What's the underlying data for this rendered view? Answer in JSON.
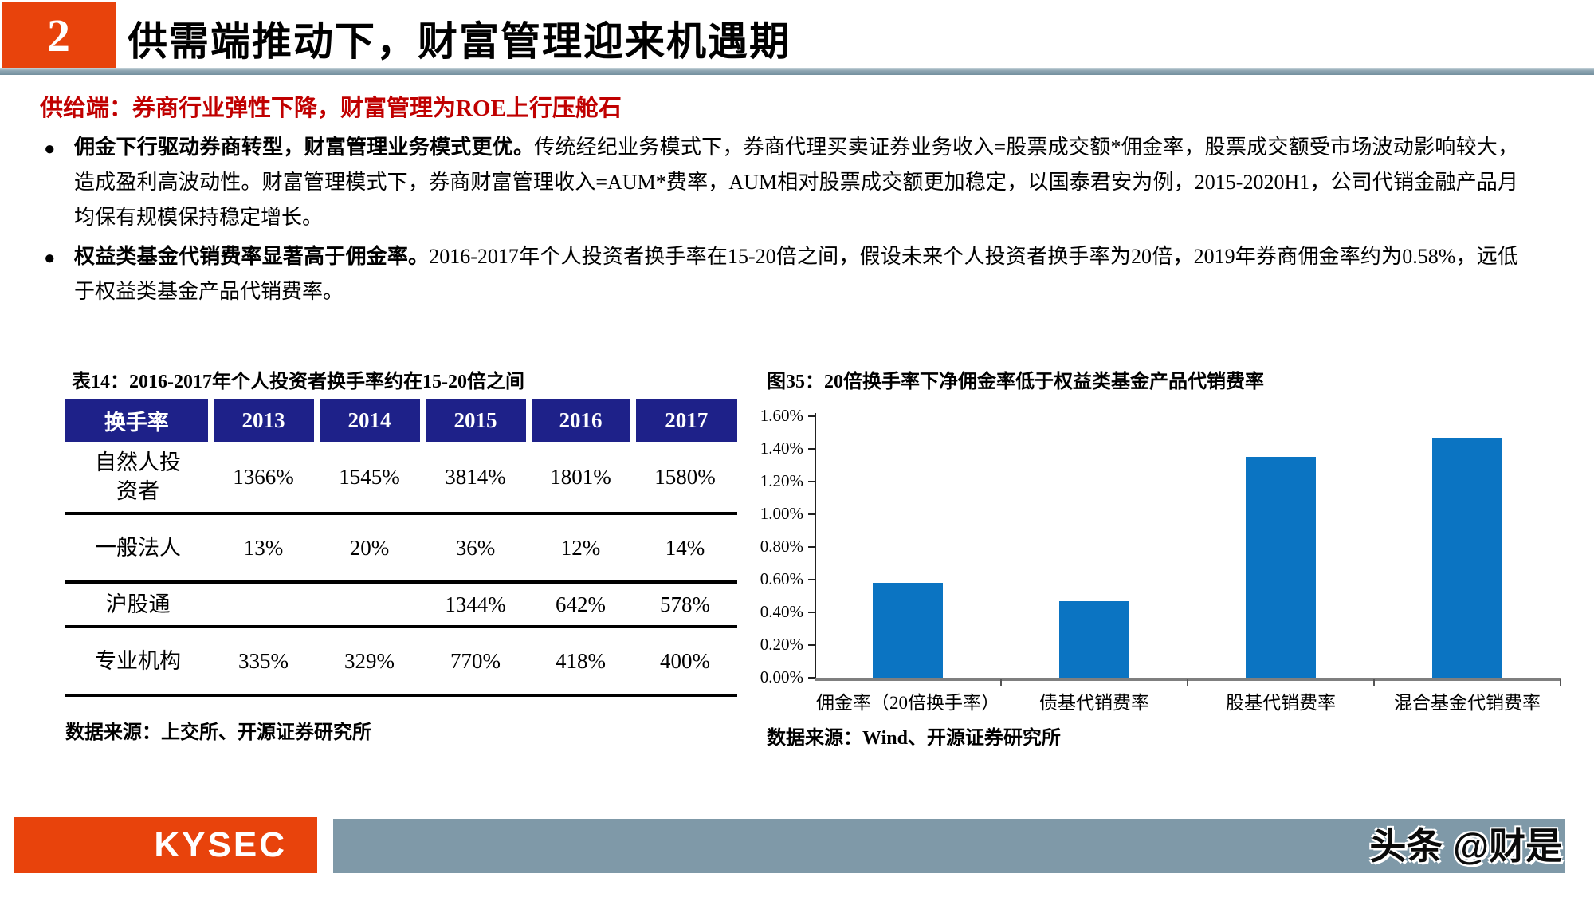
{
  "header": {
    "section_number": "2",
    "title": "供需端推动下，财富管理迎来机遇期"
  },
  "subtitle": "供给端：券商行业弹性下降，财富管理为ROE上行压舱石",
  "bullets": [
    {
      "bold": "佣金下行驱动券商转型，财富管理业务模式更优。",
      "text": "传统经纪业务模式下，券商代理买卖证券业务收入=股票成交额*佣金率，股票成交额受市场波动影响较大，造成盈利高波动性。财富管理模式下，券商财富管理收入=AUM*费率，AUM相对股票成交额更加稳定，以国泰君安为例，2015-2020H1，公司代销金融产品月均保有规模保持稳定增长。"
    },
    {
      "bold": "权益类基金代销费率显著高于佣金率。",
      "text": "2016-2017年个人投资者换手率在15-20倍之间，假设未来个人投资者换手率为20倍，2019年券商佣金率约为0.58%，远低于权益类基金产品代销费率。"
    }
  ],
  "table": {
    "title": "表14：2016-2017年个人投资者换手率约在15-20倍之间",
    "headers": [
      "换手率",
      "2013",
      "2014",
      "2015",
      "2016",
      "2017"
    ],
    "rows": [
      {
        "label": "自然人投资者",
        "values": [
          "1366%",
          "1545%",
          "3814%",
          "1801%",
          "1580%"
        ]
      },
      {
        "label": "一般法人",
        "values": [
          "13%",
          "20%",
          "36%",
          "12%",
          "14%"
        ]
      },
      {
        "label": "沪股通",
        "values": [
          "",
          "",
          "1344%",
          "642%",
          "578%"
        ]
      },
      {
        "label": "专业机构",
        "values": [
          "335%",
          "329%",
          "770%",
          "418%",
          "400%"
        ]
      }
    ],
    "source": "数据来源：上交所、开源证券研究所"
  },
  "chart_data": {
    "type": "bar",
    "title": "图35：20倍换手率下净佣金率低于权益类基金产品代销费率",
    "categories": [
      "佣金率（20倍换手率）",
      "债基代销费率",
      "股基代销费率",
      "混合基金代销费率"
    ],
    "values": [
      0.58,
      0.47,
      1.35,
      1.47
    ],
    "unit": "%",
    "xlabel": "",
    "ylabel": "",
    "ylim": [
      0,
      1.6
    ],
    "ytick_step": 0.2,
    "ytick_labels": [
      "0.00%",
      "0.20%",
      "0.40%",
      "0.60%",
      "0.80%",
      "1.00%",
      "1.20%",
      "1.40%",
      "1.60%"
    ],
    "bar_color": "#0b74c2",
    "grid": false,
    "legend": false,
    "source": "数据来源：Wind、开源证券研究所"
  },
  "footer": {
    "brand": "KYSEC",
    "watermark": "头条 @财是"
  },
  "colors": {
    "accent_orange": "#e8430c",
    "table_header_navy": "#1e2189",
    "bar_blue": "#0b74c2",
    "subtitle_red": "#c00000",
    "footer_gray": "#7f99a8"
  }
}
